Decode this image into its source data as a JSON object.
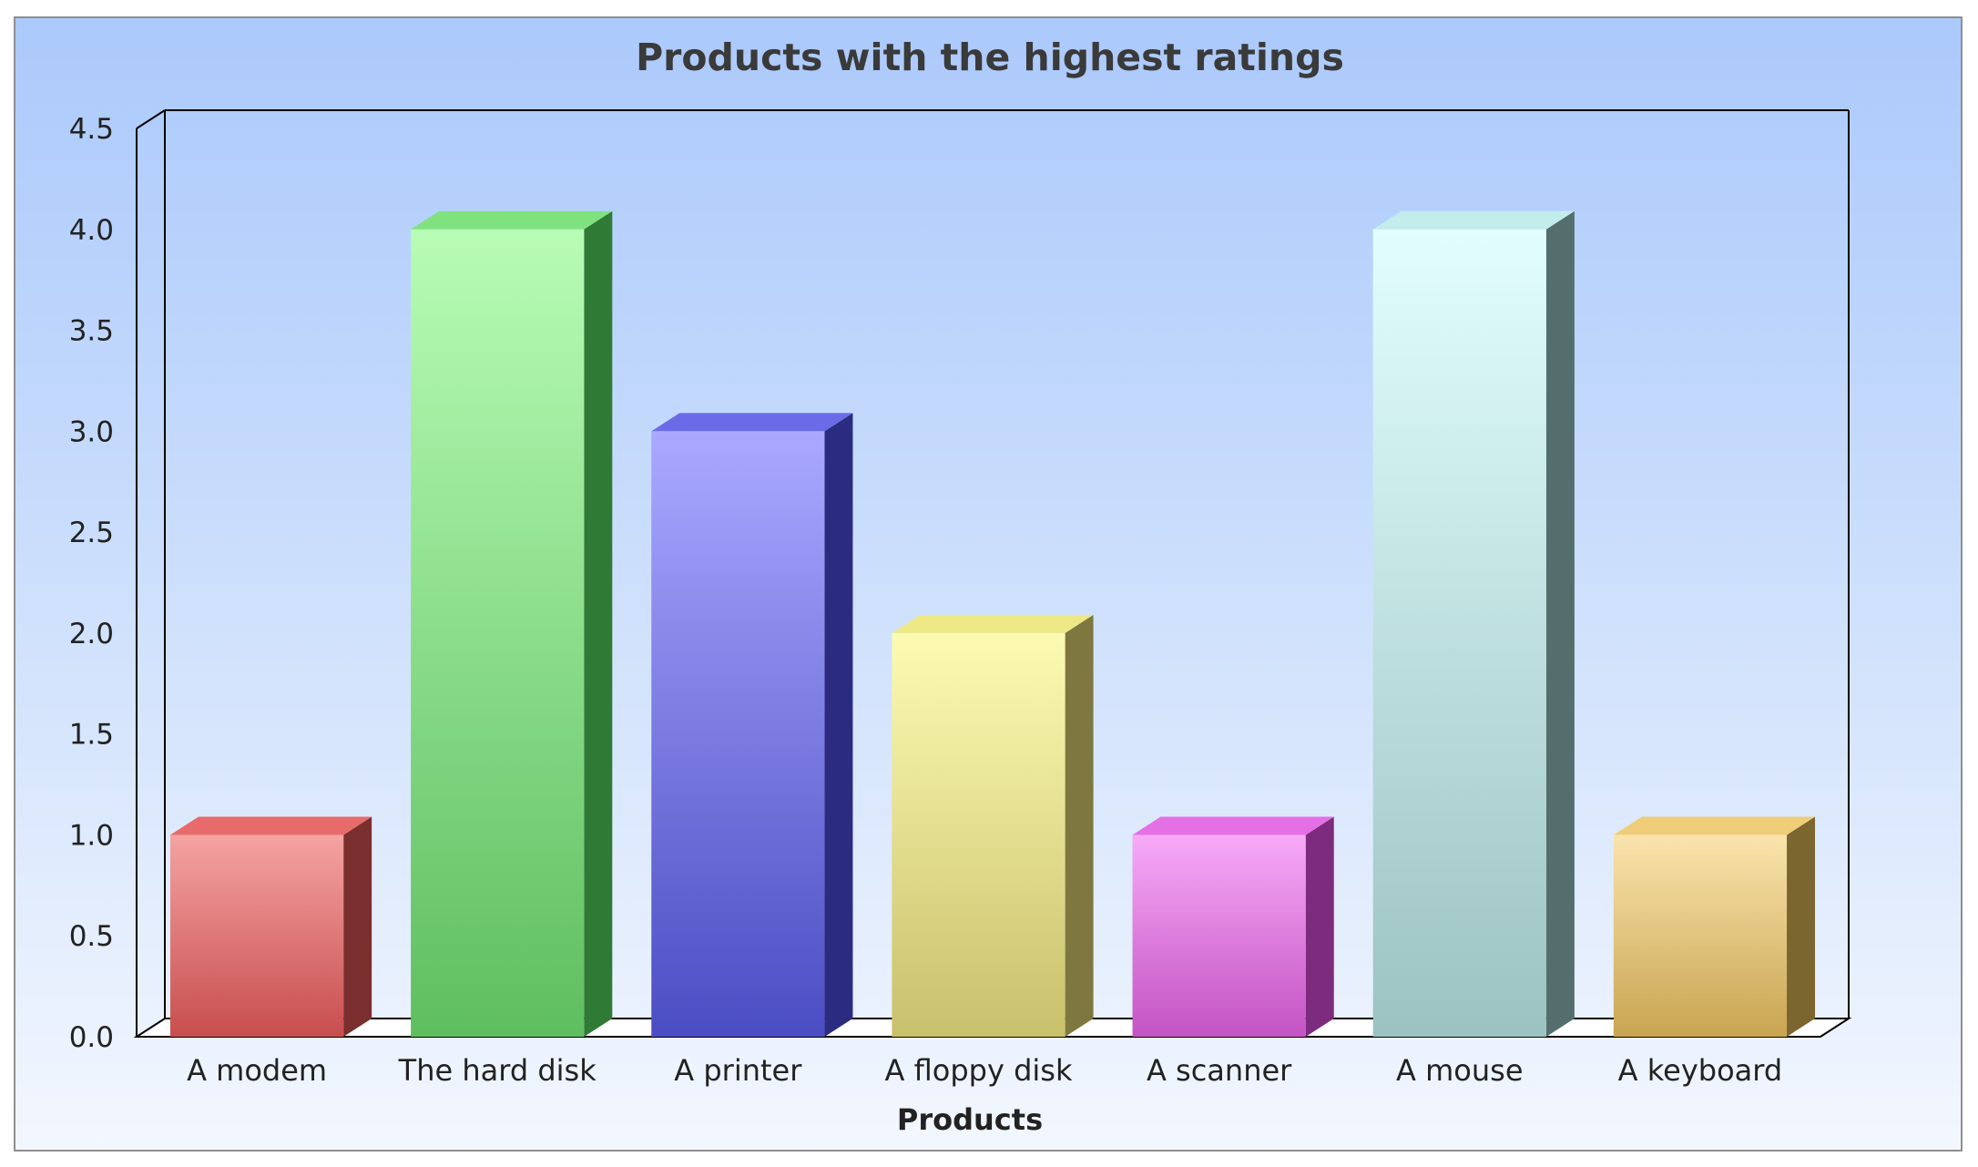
{
  "chart_data": {
    "type": "bar",
    "title": "Products with the highest ratings",
    "xlabel": "Products",
    "ylabel": "",
    "categories": [
      "A modem",
      "The hard disk",
      "A printer",
      "A floppy disk",
      "A scanner",
      "A mouse",
      "A keyboard"
    ],
    "values": [
      1,
      4,
      3,
      2,
      1,
      4,
      1
    ],
    "ylim": [
      0,
      4.5
    ],
    "yticks": [
      "0.0",
      "0.5",
      "1.0",
      "1.5",
      "2.0",
      "2.5",
      "3.0",
      "3.5",
      "4.0",
      "4.5"
    ],
    "grid": false,
    "legend": "none",
    "bar_colors": [
      {
        "top": "#f5a3a3",
        "bottom": "#c84e4e",
        "side": "#7a2e2e",
        "cap": "#e86b6b"
      },
      {
        "top": "#b8fcb6",
        "bottom": "#5fbe5f",
        "side": "#2f7a34",
        "cap": "#7fe27f"
      },
      {
        "top": "#aaa8ff",
        "bottom": "#4b4dc3",
        "side": "#2b2c80",
        "cap": "#6b6be8"
      },
      {
        "top": "#fdfbb3",
        "bottom": "#c9c06b",
        "side": "#7e7840",
        "cap": "#ece886"
      },
      {
        "top": "#f7aaf7",
        "bottom": "#c453c4",
        "side": "#7d2b7d",
        "cap": "#e570e5"
      },
      {
        "top": "#e2fefe",
        "bottom": "#9cc2c2",
        "side": "#546e6e",
        "cap": "#c3eded"
      },
      {
        "top": "#fae4ac",
        "bottom": "#c9a552",
        "side": "#7c6630",
        "cap": "#efcd79"
      }
    ]
  }
}
